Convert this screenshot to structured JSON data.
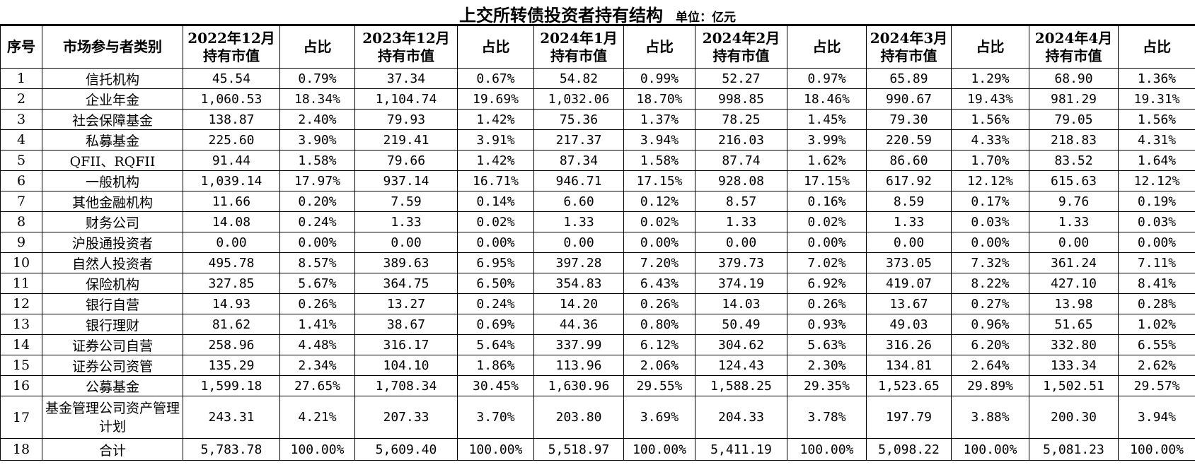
{
  "title": "上交所转债投资者持有结构",
  "unit": "单位：亿元",
  "headers": [
    "序号",
    "市场参与者类别",
    "2022年12月\n持有市值",
    "占比",
    "2023年12月\n持有市值",
    "占比",
    "2024年1月\n持有市值",
    "占比",
    "2024年2月\n持有市值",
    "占比",
    "2024年3月\n持有市值",
    "占比",
    "2024年4月\n持有市值",
    "占比"
  ],
  "rows": [
    [
      "1",
      "信托机构",
      "45.54",
      "0.79%",
      "37.34",
      "0.67%",
      "54.82",
      "0.99%",
      "52.27",
      "0.97%",
      "65.89",
      "1.29%",
      "68.90",
      "1.36%"
    ],
    [
      "2",
      "企业年金",
      "1,060.53",
      "18.34%",
      "1,104.74",
      "19.69%",
      "1,032.06",
      "18.70%",
      "998.85",
      "18.46%",
      "990.67",
      "19.43%",
      "981.29",
      "19.31%"
    ],
    [
      "3",
      "社会保障基金",
      "138.87",
      "2.40%",
      "79.93",
      "1.42%",
      "75.36",
      "1.37%",
      "78.25",
      "1.45%",
      "79.30",
      "1.56%",
      "79.05",
      "1.56%"
    ],
    [
      "4",
      "私募基金",
      "225.60",
      "3.90%",
      "219.41",
      "3.91%",
      "217.37",
      "3.94%",
      "216.03",
      "3.99%",
      "220.59",
      "4.33%",
      "218.83",
      "4.31%"
    ],
    [
      "5",
      "QFII、RQFII",
      "91.44",
      "1.58%",
      "79.66",
      "1.42%",
      "87.34",
      "1.58%",
      "87.74",
      "1.62%",
      "86.60",
      "1.70%",
      "83.52",
      "1.64%"
    ],
    [
      "6",
      "一般机构",
      "1,039.14",
      "17.97%",
      "937.14",
      "16.71%",
      "946.71",
      "17.15%",
      "928.08",
      "17.15%",
      "617.92",
      "12.12%",
      "615.63",
      "12.12%"
    ],
    [
      "7",
      "其他金融机构",
      "11.66",
      "0.20%",
      "7.59",
      "0.14%",
      "6.60",
      "0.12%",
      "8.57",
      "0.16%",
      "8.59",
      "0.17%",
      "9.76",
      "0.19%"
    ],
    [
      "8",
      "财务公司",
      "14.08",
      "0.24%",
      "1.33",
      "0.02%",
      "1.33",
      "0.02%",
      "1.33",
      "0.02%",
      "1.33",
      "0.03%",
      "1.33",
      "0.03%"
    ],
    [
      "9",
      "沪股通投资者",
      "0.00",
      "0.00%",
      "0.00",
      "0.00%",
      "0.00",
      "0.00%",
      "0.00",
      "0.00%",
      "0.00",
      "0.00%",
      "0.00",
      "0.00%"
    ],
    [
      "10",
      "自然人投资者",
      "495.78",
      "8.57%",
      "389.63",
      "6.95%",
      "397.28",
      "7.20%",
      "379.73",
      "7.02%",
      "373.05",
      "7.32%",
      "361.24",
      "7.11%"
    ],
    [
      "11",
      "保险机构",
      "327.85",
      "5.67%",
      "364.75",
      "6.50%",
      "354.83",
      "6.43%",
      "374.19",
      "6.92%",
      "419.07",
      "8.22%",
      "427.10",
      "8.41%"
    ],
    [
      "12",
      "银行自营",
      "14.93",
      "0.26%",
      "13.27",
      "0.24%",
      "14.20",
      "0.26%",
      "14.03",
      "0.26%",
      "13.67",
      "0.27%",
      "13.98",
      "0.28%"
    ],
    [
      "13",
      "银行理财",
      "81.62",
      "1.41%",
      "38.67",
      "0.69%",
      "44.36",
      "0.80%",
      "50.49",
      "0.93%",
      "49.03",
      "0.96%",
      "51.65",
      "1.02%"
    ],
    [
      "14",
      "证券公司自营",
      "258.96",
      "4.48%",
      "316.17",
      "5.64%",
      "337.99",
      "6.12%",
      "304.62",
      "5.63%",
      "316.26",
      "6.20%",
      "332.80",
      "6.55%"
    ],
    [
      "15",
      "证券公司资管",
      "135.29",
      "2.34%",
      "104.10",
      "1.86%",
      "113.96",
      "2.06%",
      "124.43",
      "2.30%",
      "134.81",
      "2.64%",
      "133.34",
      "2.62%"
    ],
    [
      "16",
      "公募基金",
      "1,599.18",
      "27.65%",
      "1,708.34",
      "30.45%",
      "1,630.96",
      "29.55%",
      "1,588.25",
      "29.35%",
      "1,523.65",
      "29.89%",
      "1,502.51",
      "29.57%"
    ],
    [
      "17",
      "基金管理公司资产管理计划",
      "243.31",
      "4.21%",
      "207.33",
      "3.70%",
      "203.80",
      "3.69%",
      "204.33",
      "3.78%",
      "197.79",
      "3.88%",
      "200.30",
      "3.94%"
    ],
    [
      "18",
      "合计",
      "5,783.78",
      "100.00%",
      "5,609.40",
      "100.00%",
      "5,518.97",
      "100.00%",
      "5,411.19",
      "100.00%",
      "5,098.22",
      "100.00%",
      "5,081.23",
      "100.00%"
    ]
  ]
}
